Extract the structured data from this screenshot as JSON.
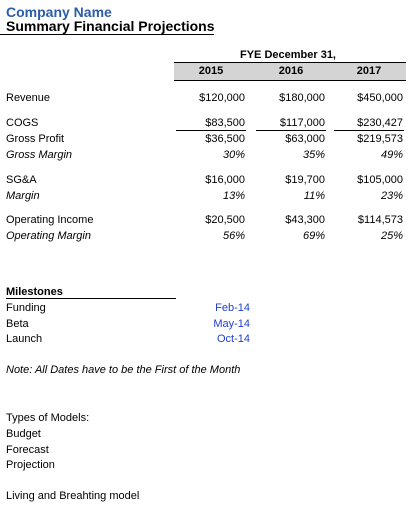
{
  "header": {
    "company": "Company Name",
    "title": "Summary Financial Projections"
  },
  "table": {
    "fye_label": "FYE December 31,",
    "years": [
      "2015",
      "2016",
      "2017"
    ],
    "rows": {
      "revenue": {
        "label": "Revenue",
        "values": [
          "$120,000",
          "$180,000",
          "$450,000"
        ]
      },
      "cogs": {
        "label": "COGS",
        "values": [
          "$83,500",
          "$117,000",
          "$230,427"
        ]
      },
      "gross_profit": {
        "label": "Gross Profit",
        "values": [
          "$36,500",
          "$63,000",
          "$219,573"
        ]
      },
      "gross_margin": {
        "label": "Gross Margin",
        "values": [
          "30%",
          "35%",
          "49%"
        ]
      },
      "sga": {
        "label": "SG&A",
        "values": [
          "$16,000",
          "$19,700",
          "$105,000"
        ]
      },
      "margin": {
        "label": "Margin",
        "values": [
          "13%",
          "11%",
          "23%"
        ]
      },
      "operating_income": {
        "label": "Operating Income",
        "values": [
          "$20,500",
          "$43,300",
          "$114,573"
        ]
      },
      "operating_margin": {
        "label": "Operating Margin",
        "values": [
          "56%",
          "69%",
          "25%"
        ]
      }
    }
  },
  "milestones": {
    "heading": "Milestones",
    "items": [
      {
        "label": "Funding",
        "date": "Feb-14"
      },
      {
        "label": "Beta",
        "date": "May-14"
      },
      {
        "label": "Launch",
        "date": "Oct-14"
      }
    ],
    "note": "Note: All Dates have to be the First of the Month"
  },
  "models": {
    "heading": "Types of Models:",
    "items": [
      "Budget",
      "Forecast",
      "Projection"
    ]
  },
  "footer_note": "Living and Breahting model",
  "colors": {
    "company": "#2b5ea7",
    "dates": "#1f3fcf",
    "year_band": "#d4d4d4"
  }
}
